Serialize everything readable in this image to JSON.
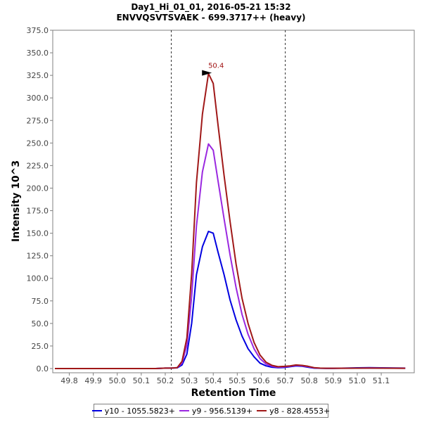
{
  "chart_data": {
    "type": "line",
    "title": "Day1_Hi_01_01, 2016-05-21 15:32",
    "subtitle": "ENVVQSVTSVAEK - 699.3717++ (heavy)",
    "xlabel": "Retention Time",
    "ylabel": "Intensity 10^3",
    "xlim": [
      49.74,
      51.22
    ],
    "ylim": [
      0,
      375
    ],
    "x_ticks": [
      "49.8",
      "49.9",
      "50.0",
      "50.1",
      "50.2",
      "50.3",
      "50.4",
      "50.5",
      "50.6",
      "50.7",
      "50.8",
      "50.9",
      "51.0",
      "51.1"
    ],
    "y_ticks": [
      "0.0",
      "25.0",
      "50.0",
      "75.0",
      "100.0",
      "125.0",
      "150.0",
      "175.0",
      "200.0",
      "225.0",
      "250.0",
      "275.0",
      "300.0",
      "325.0",
      "350.0",
      "375.0"
    ],
    "boundaries": [
      50.225,
      50.7
    ],
    "annotation": {
      "label": "50.4",
      "x": 50.4,
      "y": 327,
      "color": "#a01010"
    },
    "x": [
      49.74,
      50.16,
      50.2,
      50.225,
      50.25,
      50.27,
      50.29,
      50.31,
      50.33,
      50.355,
      50.38,
      50.4,
      50.42,
      50.445,
      50.47,
      50.495,
      50.52,
      50.545,
      50.57,
      50.595,
      50.62,
      50.645,
      50.67,
      50.695,
      50.72,
      50.745,
      50.77,
      50.795,
      50.82,
      50.845,
      50.87,
      50.9,
      51.0,
      51.05,
      51.1,
      51.2
    ],
    "series": [
      {
        "name": "y10 - 1055.5823+",
        "color": "#0000e0",
        "values": [
          0,
          0,
          0.5,
          0.5,
          0.8,
          4,
          16,
          50,
          104,
          135,
          152,
          150,
          129,
          104,
          76,
          54,
          36,
          22,
          13,
          6,
          3,
          1.5,
          1,
          1.2,
          2,
          3,
          2.5,
          1.5,
          0.5,
          0.3,
          0.2,
          0.2,
          0.8,
          1,
          0.8,
          0.5
        ]
      },
      {
        "name": "y9 - 956.5139+",
        "color": "#9a28e0",
        "values": [
          0,
          0,
          0.5,
          0.5,
          1,
          6,
          26,
          80,
          158,
          218,
          249,
          242,
          208,
          166,
          126,
          90,
          60,
          38,
          22,
          11,
          5,
          2.5,
          1.5,
          1.8,
          2.5,
          3.5,
          3,
          2,
          0.8,
          0.4,
          0.3,
          0.3,
          0.4,
          0.6,
          0.5,
          0.3
        ]
      },
      {
        "name": "y8 - 828.4553+",
        "color": "#a01818",
        "values": [
          0,
          0,
          0.5,
          0.5,
          1,
          8,
          34,
          105,
          206,
          282,
          327,
          316,
          270,
          214,
          163,
          116,
          78,
          50,
          29,
          15,
          7,
          3.5,
          2,
          2.4,
          3,
          4,
          3.5,
          2.5,
          1,
          0.5,
          0.3,
          0.3,
          0.4,
          0.5,
          0.4,
          0.3
        ]
      }
    ]
  }
}
